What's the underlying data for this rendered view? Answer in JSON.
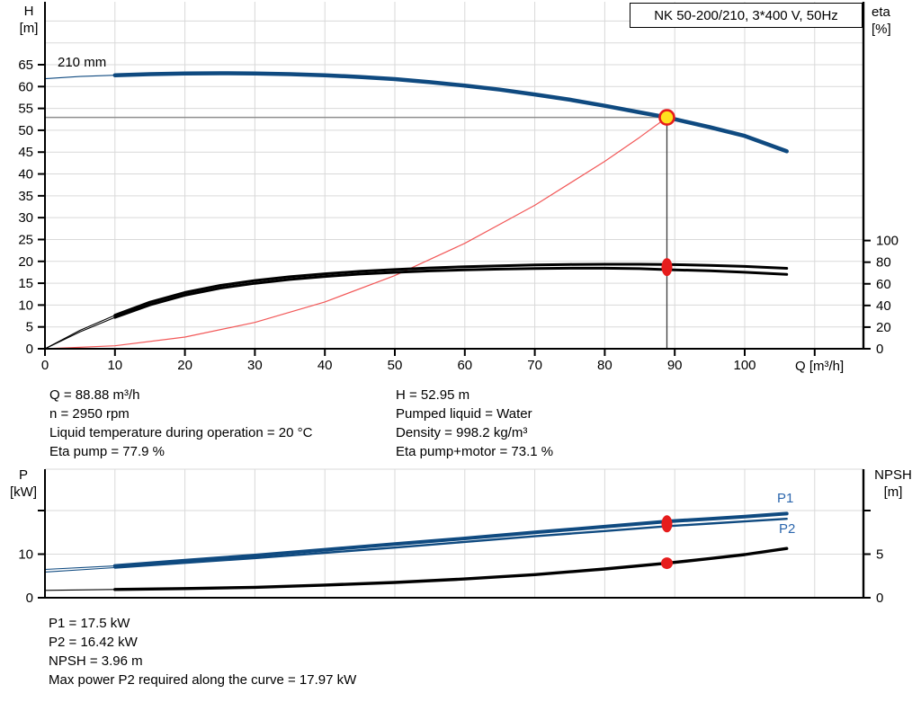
{
  "pump_info": {
    "q": "Q = 88.88 m³/h",
    "n": "n = 2950 rpm",
    "liquid_temperature": "Liquid temperature during operation = 20 °C",
    "eta_pump": "Eta pump = 77.9 %",
    "h": "H = 52.95 m",
    "pumped_liquid": "Pumped liquid = Water",
    "density": "Density = 998.2 kg/m³",
    "eta_pump_motor": "Eta pump+motor = 73.1 %"
  },
  "power_info": {
    "p1": "P1 = 17.5 kW",
    "p2": "P2 = 16.42 kW",
    "npsh": "NPSH = 3.96 m",
    "max_power": "Max power P2 required along the curve = 17.97 kW"
  },
  "chart_data": [
    {
      "type": "line",
      "name": "qh-eta-chart",
      "title": "NK 50-200/210, 3*400 V, 50Hz",
      "xlabel": "Q [m³/h]",
      "ylabel_left": [
        "H",
        "[m]"
      ],
      "ylabel_right": [
        "eta",
        "[%]"
      ],
      "curve_label": "210 mm",
      "x_ticks": [
        0,
        10,
        20,
        30,
        40,
        50,
        60,
        70,
        80,
        90,
        100
      ],
      "y_ticks_left": [
        0,
        5,
        10,
        15,
        20,
        25,
        30,
        35,
        40,
        45,
        50,
        55,
        60,
        65
      ],
      "y_ticks_right": [
        0,
        20,
        40,
        60,
        80,
        100
      ],
      "xlim": [
        0,
        117
      ],
      "ylim_left": [
        0,
        79.4
      ],
      "ylim_right": [
        0,
        320
      ],
      "grid": true,
      "colors": {
        "curve_blue": "#0f4a80",
        "system_red": "#f25858",
        "marker_red": "#e61c1c",
        "marker_yellow": "#ffe11e",
        "grid": "#d9d9d9",
        "duty_h_line": "#8f8f8f",
        "duty_v_line": "#3d3d3d"
      },
      "series": [
        {
          "name": "head-210mm",
          "axis": "h",
          "color": "#0f4a80",
          "width": 4.5,
          "thin_until": 10,
          "q": [
            0,
            5,
            10,
            15,
            20,
            25,
            30,
            35,
            40,
            45,
            50,
            55,
            60,
            65,
            70,
            75,
            80,
            85,
            88.88,
            95,
            100,
            106
          ],
          "v": [
            61.8,
            62.3,
            62.6,
            62.85,
            63.0,
            63.05,
            63.0,
            62.85,
            62.6,
            62.2,
            61.7,
            61.0,
            60.2,
            59.3,
            58.2,
            57.0,
            55.6,
            54.1,
            52.95,
            50.7,
            48.7,
            45.2
          ]
        },
        {
          "name": "eta-pump",
          "axis": "eta",
          "color": "#000000",
          "width": 3,
          "thin_until": 10,
          "q": [
            0,
            5,
            10,
            15,
            20,
            25,
            30,
            35,
            40,
            45,
            50,
            55,
            60,
            65,
            70,
            75,
            80,
            85,
            88.88,
            95,
            100,
            106
          ],
          "v": [
            0,
            17,
            31,
            43,
            52,
            58.5,
            63,
            66.5,
            69.3,
            71.5,
            73.2,
            74.7,
            75.8,
            76.7,
            77.4,
            77.9,
            78.1,
            78.1,
            77.9,
            77.1,
            76.1,
            74.3
          ]
        },
        {
          "name": "eta-pump-motor",
          "axis": "eta",
          "color": "#000000",
          "width": 3,
          "thin_until": 10,
          "q": [
            0,
            5,
            10,
            15,
            20,
            25,
            30,
            35,
            40,
            45,
            50,
            55,
            60,
            65,
            70,
            75,
            80,
            85,
            88.88,
            95,
            100,
            106
          ],
          "v": [
            0,
            15.5,
            29,
            40.5,
            49.5,
            56,
            60.5,
            64,
            66.8,
            69,
            70.6,
            71.9,
            72.9,
            73.6,
            74.1,
            74.4,
            74.4,
            74.0,
            73.1,
            72.0,
            70.7,
            68.7
          ]
        },
        {
          "name": "system-curve",
          "axis": "h",
          "color": "#f25858",
          "width": 1.2,
          "thin_until": null,
          "q": [
            0,
            10,
            20,
            30,
            40,
            50,
            60,
            70,
            80,
            85,
            88.88
          ],
          "v": [
            0,
            0.67,
            2.68,
            6.03,
            10.72,
            16.75,
            24.12,
            32.83,
            42.89,
            48.4,
            52.95
          ]
        }
      ],
      "duty_point": {
        "q": 88.88,
        "h": 52.95,
        "eta_pump": 77.9,
        "eta_pump_motor": 73.1
      }
    },
    {
      "type": "line",
      "name": "power-npsh-chart",
      "ylabel_left": [
        "P",
        "[kW]"
      ],
      "ylabel_right": [
        "NPSH",
        "[m]"
      ],
      "y_ticks_left": [
        {
          "v": 0,
          "label": "0"
        },
        {
          "v": 10,
          "label": "10"
        },
        {
          "v": 20,
          "label": ""
        }
      ],
      "y_ticks_right": [
        {
          "v": 0,
          "label": "0"
        },
        {
          "v": 5,
          "label": "5"
        },
        {
          "v": 10,
          "label": ""
        }
      ],
      "xlim": [
        0,
        117
      ],
      "ylim_left": [
        0,
        29.5
      ],
      "ylim_right": [
        0,
        14.7
      ],
      "grid": true,
      "series": [
        {
          "name": "p1",
          "label": "P1",
          "axis": "p",
          "color": "#0f4a80",
          "width": 4,
          "thin_until": 10,
          "q": [
            0,
            10,
            20,
            30,
            40,
            50,
            60,
            70,
            80,
            88.88,
            95,
            100,
            106
          ],
          "v": [
            6.5,
            7.3,
            8.5,
            9.7,
            11.0,
            12.3,
            13.6,
            15.0,
            16.3,
            17.5,
            18.1,
            18.6,
            19.3
          ]
        },
        {
          "name": "p2",
          "label": "P2",
          "axis": "p",
          "color": "#0f4a80",
          "width": 2.4,
          "thin_until": 10,
          "q": [
            0,
            10,
            20,
            30,
            40,
            50,
            60,
            70,
            80,
            88.88,
            95,
            100,
            106
          ],
          "v": [
            5.9,
            6.9,
            8.0,
            9.1,
            10.3,
            11.5,
            12.8,
            14.1,
            15.3,
            16.42,
            17.0,
            17.5,
            18.1
          ]
        },
        {
          "name": "npsh",
          "label": "",
          "axis": "n",
          "color": "#000000",
          "width": 3.4,
          "thin_until": 10,
          "q": [
            0,
            10,
            20,
            30,
            40,
            50,
            60,
            70,
            80,
            88.88,
            95,
            100,
            106
          ],
          "v": [
            0.85,
            0.95,
            1.05,
            1.2,
            1.45,
            1.75,
            2.15,
            2.65,
            3.3,
            3.96,
            4.5,
            4.95,
            5.65
          ]
        }
      ],
      "duty_point": {
        "q": 88.88,
        "p1": 17.5,
        "p2": 16.42,
        "npsh": 3.96
      }
    }
  ]
}
